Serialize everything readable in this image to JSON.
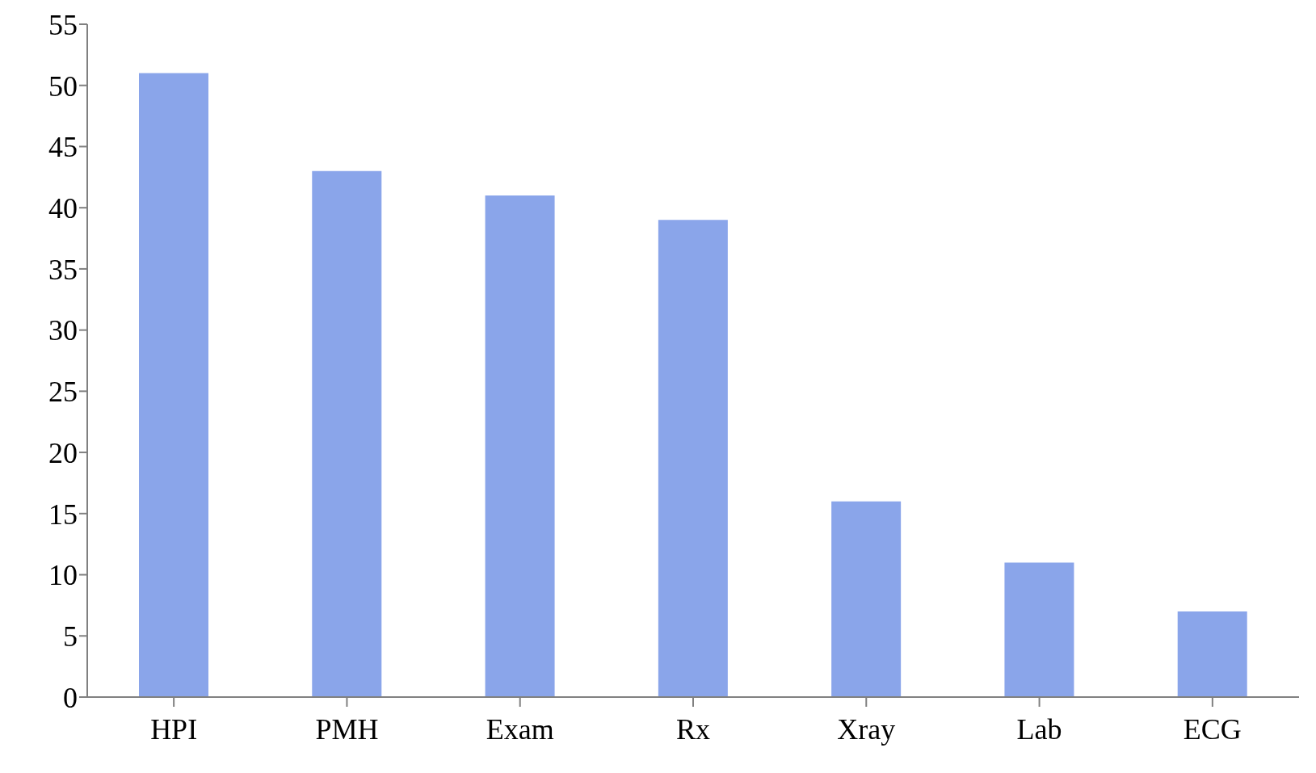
{
  "chart_data": {
    "type": "bar",
    "categories": [
      "HPI",
      "PMH",
      "Exam",
      "Rx",
      "Xray",
      "Lab",
      "ECG"
    ],
    "values": [
      51,
      43,
      41,
      39,
      16,
      11,
      7
    ],
    "color": "#8aa5ea",
    "ylim": [
      0,
      55
    ],
    "yticks": [
      0,
      5,
      10,
      15,
      20,
      25,
      30,
      35,
      40,
      45,
      50,
      55
    ],
    "grid": false
  }
}
